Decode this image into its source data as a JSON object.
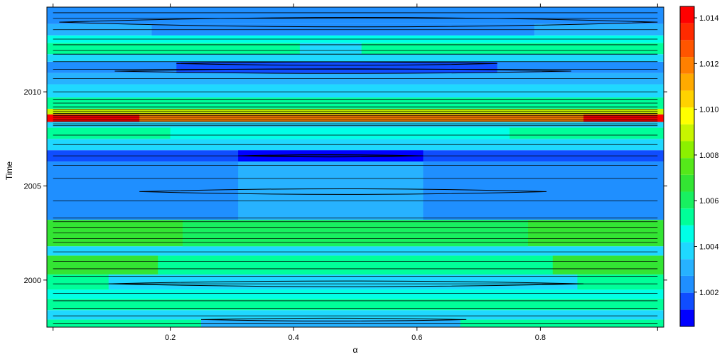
{
  "chart_data": {
    "type": "heatmap",
    "title": "",
    "xlabel": "α",
    "ylabel": "Time",
    "x_ticks": [
      "0.2",
      "0.4",
      "0.6",
      "0.8"
    ],
    "x_tick_values": [
      0.2,
      0.4,
      0.6,
      0.8
    ],
    "y_ticks": [
      "2000",
      "2005",
      "2010"
    ],
    "y_tick_values": [
      2000,
      2005,
      2010
    ],
    "xlim": [
      0.0,
      1.0
    ],
    "ylim": [
      1997.5,
      2014.5
    ],
    "grid": false,
    "legend": "right",
    "colorbar": {
      "levels": [
        1.0005,
        1.001,
        1.0015,
        1.002,
        1.0025,
        1.003,
        1.0035,
        1.004,
        1.0045,
        1.005,
        1.0055,
        1.006,
        1.0065,
        1.007,
        1.0075,
        1.008,
        1.0085,
        1.009,
        1.0095,
        1.01,
        1.0105,
        1.011,
        1.0115,
        1.012,
        1.0125,
        1.013,
        1.0135,
        1.014,
        1.0145
      ],
      "colors": [
        "#0000ff",
        "#0f4dff",
        "#1f8fff",
        "#27b2ff",
        "#1fd8ff",
        "#00ffe6",
        "#00ff99",
        "#18f060",
        "#33e533",
        "#55e81a",
        "#8cf000",
        "#c8f500",
        "#ffff00",
        "#ffd200",
        "#ffaa00",
        "#ff8000",
        "#ff5500",
        "#ff2a00",
        "#ff0000"
      ],
      "tick_labels": [
        "1.002",
        "1.004",
        "1.006",
        "1.008",
        "1.010",
        "1.012",
        "1.014"
      ],
      "tick_values": [
        1.002,
        1.004,
        1.006,
        1.008,
        1.01,
        1.012,
        1.014
      ]
    },
    "bands": [
      {
        "y0": 1997.5,
        "y1": 1997.9,
        "color": "#00ff99",
        "inner": {
          "x0": 0.25,
          "x1": 0.67,
          "color": "#27b2ff"
        }
      },
      {
        "y0": 1997.9,
        "y1": 1998.4,
        "color": "#1fd8ff"
      },
      {
        "y0": 1998.4,
        "y1": 1999.0,
        "color": "#00ff99"
      },
      {
        "y0": 1999.0,
        "y1": 1999.5,
        "color": "#00ffe6"
      },
      {
        "y0": 1999.5,
        "y1": 2000.3,
        "color": "#00ff99",
        "inner": {
          "x0": 0.1,
          "x1": 0.86,
          "color": "#1fd8ff"
        }
      },
      {
        "y0": 2000.3,
        "y1": 2001.3,
        "color": "#33e533",
        "inner": {
          "x0": 0.18,
          "x1": 0.82,
          "color": "#00ff99"
        }
      },
      {
        "y0": 2001.3,
        "y1": 2001.8,
        "color": "#1fd8ff"
      },
      {
        "y0": 2001.8,
        "y1": 2003.2,
        "color": "#33e533",
        "inner": {
          "x0": 0.22,
          "x1": 0.78,
          "color": "#18f060"
        }
      },
      {
        "y0": 2003.2,
        "y1": 2006.3,
        "color": "#1f8fff",
        "inner": {
          "x0": 0.31,
          "x1": 0.61,
          "color": "#27b2ff"
        }
      },
      {
        "y0": 2006.3,
        "y1": 2006.9,
        "color": "#0f4dff",
        "inner": {
          "x0": 0.31,
          "x1": 0.61,
          "color": "#0000ff"
        }
      },
      {
        "y0": 2006.9,
        "y1": 2007.5,
        "color": "#1fd8ff"
      },
      {
        "y0": 2007.5,
        "y1": 2008.1,
        "color": "#00ff99",
        "inner": {
          "x0": 0.2,
          "x1": 0.75,
          "color": "#00ffe6"
        }
      },
      {
        "y0": 2008.1,
        "y1": 2008.4,
        "color": "#1fd8ff"
      },
      {
        "y0": 2008.4,
        "y1": 2008.8,
        "color": "#ff0000",
        "inner": {
          "x0": 0.15,
          "x1": 0.87,
          "color": "#ff8000"
        }
      },
      {
        "y0": 2008.8,
        "y1": 2009.1,
        "color": "#c8f500"
      },
      {
        "y0": 2009.1,
        "y1": 2009.7,
        "color": "#00ff99"
      },
      {
        "y0": 2009.7,
        "y1": 2010.4,
        "color": "#1fd8ff"
      },
      {
        "y0": 2010.4,
        "y1": 2011.0,
        "color": "#27b2ff"
      },
      {
        "y0": 2011.0,
        "y1": 2011.6,
        "color": "#1f8fff",
        "inner": {
          "x0": 0.21,
          "x1": 0.73,
          "color": "#0f4dff"
        }
      },
      {
        "y0": 2011.6,
        "y1": 2012.0,
        "color": "#1fd8ff"
      },
      {
        "y0": 2012.0,
        "y1": 2012.6,
        "color": "#00ff99",
        "inner": {
          "x0": 0.41,
          "x1": 0.51,
          "color": "#1fd8ff"
        }
      },
      {
        "y0": 2012.6,
        "y1": 2013.0,
        "color": "#00ffe6"
      },
      {
        "y0": 2013.0,
        "y1": 2013.6,
        "color": "#27b2ff",
        "inner": {
          "x0": 0.17,
          "x1": 0.79,
          "color": "#1f8fff"
        }
      },
      {
        "y0": 2013.6,
        "y1": 2014.5,
        "color": "#1f8fff"
      }
    ],
    "contour_lines": [
      1997.7,
      1998.1,
      1998.5,
      1998.9,
      1999.3,
      1999.8,
      2000.2,
      2000.6,
      2001.0,
      2001.5,
      2002.0,
      2002.2,
      2002.5,
      2002.8,
      2003.1,
      2003.3,
      2004.2,
      2005.4,
      2006.1,
      2006.6,
      2007.2,
      2007.7,
      2008.2,
      2008.3,
      2008.45,
      2008.55,
      2008.65,
      2008.75,
      2008.85,
      2008.95,
      2009.05,
      2009.2,
      2009.4,
      2009.6,
      2010.0,
      2010.7,
      2011.2,
      2011.6,
      2012.0,
      2012.2,
      2012.5,
      2012.8,
      2013.3,
      2013.9,
      2014.2
    ],
    "contour_lenses": [
      {
        "y": 1997.9,
        "x0": 0.25,
        "x1": 0.68,
        "h": 0.15
      },
      {
        "y": 1999.8,
        "x0": 0.1,
        "x1": 0.87,
        "h": 0.3
      },
      {
        "y": 2004.7,
        "x0": 0.15,
        "x1": 0.81,
        "h": 0.3
      },
      {
        "y": 2006.6,
        "x0": 0.31,
        "x1": 0.61,
        "h": 0.12
      },
      {
        "y": 2011.1,
        "x0": 0.11,
        "x1": 0.85,
        "h": 0.25
      },
      {
        "y": 2011.5,
        "x0": 0.21,
        "x1": 0.73,
        "h": 0.18
      },
      {
        "y": 2013.7,
        "x0": 0.02,
        "x1": 0.99,
        "h": 0.5
      }
    ]
  }
}
